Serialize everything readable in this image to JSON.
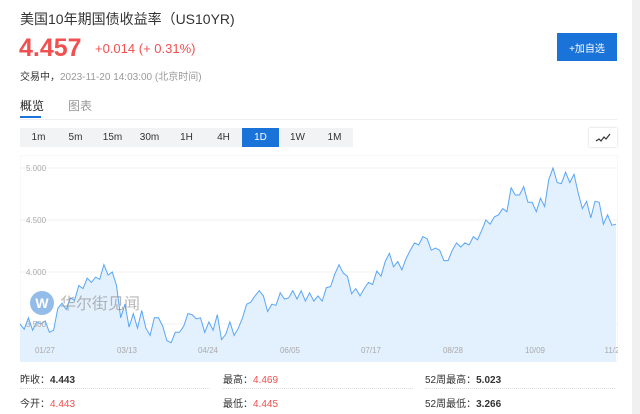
{
  "header": {
    "title": "美国10年期国债收益率（US10YR)",
    "price": "4.457",
    "change": "+0.014 (+ 0.31%)",
    "status": "交易中，",
    "timestamp": "2023-11-20 14:03:00 (北京时间)",
    "add_watchlist_label": "+加自选"
  },
  "tabs": [
    {
      "label": "概览",
      "active": true
    },
    {
      "label": "图表",
      "active": false
    }
  ],
  "periods": [
    {
      "label": "1m"
    },
    {
      "label": "5m"
    },
    {
      "label": "15m"
    },
    {
      "label": "30m"
    },
    {
      "label": "1H"
    },
    {
      "label": "4H"
    },
    {
      "label": "1D",
      "active": true
    },
    {
      "label": "1W"
    },
    {
      "label": "1M"
    }
  ],
  "chart_type_icon": "line-chart-icon",
  "watermark": "华尔街见闻",
  "colors": {
    "accent": "#1a73d9",
    "up": "#f0504f",
    "line": "#5aa6f5",
    "fill": "#e3f0fd"
  },
  "chart_data": {
    "type": "area",
    "ylim": [
      3.2,
      5.05
    ],
    "yticks": [
      "5.000",
      "4.500",
      "4.000",
      "3.500"
    ],
    "xticks": [
      "01/27",
      "03/13",
      "04/24",
      "06/05",
      "07/17",
      "08/28",
      "10/09",
      "11/2"
    ],
    "grid": true,
    "values": [
      3.5,
      3.45,
      3.56,
      3.44,
      3.52,
      3.5,
      3.53,
      3.42,
      3.44,
      3.65,
      3.7,
      3.64,
      3.75,
      3.73,
      3.87,
      3.84,
      3.94,
      3.9,
      3.95,
      3.93,
      4.07,
      3.97,
      4.0,
      3.87,
      3.56,
      3.69,
      3.47,
      3.6,
      3.46,
      3.63,
      3.46,
      3.39,
      3.56,
      3.56,
      3.48,
      3.34,
      3.32,
      3.42,
      3.42,
      3.48,
      3.6,
      3.59,
      3.55,
      3.56,
      3.42,
      3.52,
      3.44,
      3.59,
      3.35,
      3.4,
      3.52,
      3.39,
      3.46,
      3.56,
      3.69,
      3.71,
      3.77,
      3.82,
      3.77,
      3.62,
      3.69,
      3.68,
      3.8,
      3.74,
      3.75,
      3.82,
      3.74,
      3.82,
      3.72,
      3.8,
      3.72,
      3.77,
      3.72,
      3.85,
      3.86,
      3.98,
      4.07,
      3.99,
      3.96,
      3.79,
      3.84,
      3.77,
      3.84,
      3.9,
      3.88,
      4.01,
      3.96,
      4.1,
      4.18,
      4.05,
      4.1,
      4.02,
      4.13,
      4.21,
      4.28,
      4.26,
      4.34,
      4.32,
      4.21,
      4.23,
      4.21,
      4.11,
      4.11,
      4.21,
      4.28,
      4.24,
      4.28,
      4.26,
      4.34,
      4.31,
      4.4,
      4.5,
      4.46,
      4.53,
      4.55,
      4.61,
      4.58,
      4.81,
      4.74,
      4.74,
      4.82,
      4.67,
      4.67,
      4.58,
      4.71,
      4.63,
      4.89,
      5.0,
      4.86,
      4.85,
      4.96,
      4.86,
      4.94,
      4.76,
      4.61,
      4.68,
      4.52,
      4.68,
      4.67,
      4.46,
      4.55,
      4.45,
      4.46
    ]
  },
  "stats": [
    {
      "label": "昨收：",
      "value": "4.443",
      "red": false
    },
    {
      "label": "最高：",
      "value": "4.469",
      "red": true
    },
    {
      "label": "52周最高：",
      "value": "5.023",
      "red": false
    },
    {
      "label": "今开：",
      "value": "4.443",
      "red": true
    },
    {
      "label": "最低：",
      "value": "4.445",
      "red": true
    },
    {
      "label": "52周最低：",
      "value": "3.266",
      "red": false
    }
  ]
}
